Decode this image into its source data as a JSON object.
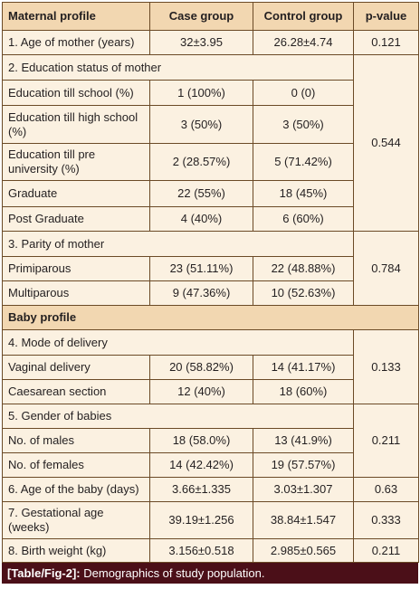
{
  "table": {
    "headers": [
      "Maternal profile",
      "Case group",
      "Control group",
      "p-value"
    ],
    "rows": {
      "r1": [
        "1. Age of mother (years)",
        "32±3.95",
        "26.28±4.74",
        "0.121"
      ],
      "s2": "2. Education status of mother",
      "r2a": [
        "Education till school (%)",
        "1 (100%)",
        "0 (0)"
      ],
      "r2b": [
        "Education till high school (%)",
        "3 (50%)",
        "3 (50%)"
      ],
      "r2c": [
        "Education till pre university (%)",
        "2 (28.57%)",
        "5 (71.42%)"
      ],
      "r2d": [
        "Graduate",
        "22 (55%)",
        "18 (45%)"
      ],
      "r2e": [
        "Post Graduate",
        "4 (40%)",
        "6 (60%)"
      ],
      "p2": "0.544",
      "s3": "3. Parity of mother",
      "r3a": [
        "Primiparous",
        "23 (51.11%)",
        "22 (48.88%)"
      ],
      "r3b": [
        "Multiparous",
        "9 (47.36%)",
        "10 (52.63%)"
      ],
      "p3": "0.784",
      "baby": "Baby profile",
      "s4": "4. Mode of delivery",
      "r4a": [
        "Vaginal delivery",
        "20 (58.82%)",
        "14 (41.17%)"
      ],
      "r4b": [
        "Caesarean section",
        "12 (40%)",
        "18 (60%)"
      ],
      "p4": "0.133",
      "s5": "5. Gender of babies",
      "r5a": [
        "No. of males",
        "18 (58.0%)",
        "13 (41.9%)"
      ],
      "r5b": [
        "No. of females",
        "14 (42.42%)",
        "19 (57.57%)"
      ],
      "p5": "0.211",
      "r6": [
        "6. Age of the baby (days)",
        "3.66±1.335",
        "3.03±1.307",
        "0.63"
      ],
      "r7": [
        "7. Gestational age (weeks)",
        "39.19±1.256",
        "38.84±1.547",
        "0.333"
      ],
      "r8": [
        "8. Birth weight (kg)",
        "3.156±0.518",
        "2.985±0.565",
        "0.211"
      ]
    }
  },
  "caption": {
    "label": "[Table/Fig-2]:",
    "text": " Demographics of study population."
  }
}
